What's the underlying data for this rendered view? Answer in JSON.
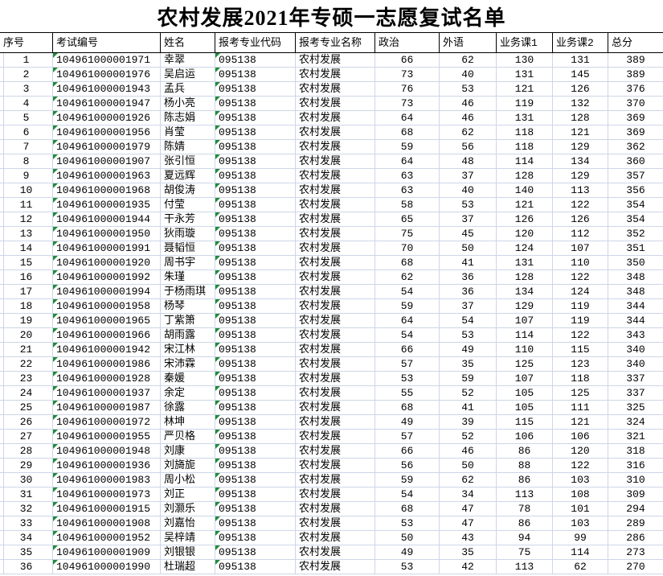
{
  "title": "农村发展2021年专硕一志愿复试名单",
  "colors": {
    "background": "#ffffff",
    "text": "#000000",
    "gridline": "#cdd6e7",
    "header_border": "#000000",
    "stored_as_text_triangle": "#1f8b3b"
  },
  "table": {
    "columns": [
      {
        "key": "no",
        "label": "序号",
        "width": 66,
        "align": "center",
        "triangle": false
      },
      {
        "key": "exam_no",
        "label": "考试编号",
        "width": 134,
        "align": "left",
        "triangle": true
      },
      {
        "key": "name",
        "label": "姓名",
        "width": 68,
        "align": "left",
        "triangle": false
      },
      {
        "key": "major_code",
        "label": "报考专业代码",
        "width": 100,
        "align": "left",
        "triangle": true
      },
      {
        "key": "major_name",
        "label": "报考专业名称",
        "width": 99,
        "align": "left",
        "triangle": false
      },
      {
        "key": "politics",
        "label": "政治",
        "width": 80,
        "align": "center",
        "triangle": false
      },
      {
        "key": "foreign",
        "label": "外语",
        "width": 71,
        "align": "center",
        "triangle": false
      },
      {
        "key": "course1",
        "label": "业务课1",
        "width": 70,
        "align": "center",
        "triangle": false
      },
      {
        "key": "course2",
        "label": "业务课2",
        "width": 69,
        "align": "center",
        "triangle": false
      },
      {
        "key": "total",
        "label": "总分",
        "width": 68,
        "align": "center",
        "triangle": false
      }
    ],
    "rows": [
      {
        "no": 1,
        "exam_no": "104961000001971",
        "name": "幸翠",
        "major_code": "095138",
        "major_name": "农村发展",
        "politics": 66,
        "foreign": 62,
        "course1": 130,
        "course2": 131,
        "total": 389
      },
      {
        "no": 2,
        "exam_no": "104961000001976",
        "name": "吴启运",
        "major_code": "095138",
        "major_name": "农村发展",
        "politics": 73,
        "foreign": 40,
        "course1": 131,
        "course2": 145,
        "total": 389
      },
      {
        "no": 3,
        "exam_no": "104961000001943",
        "name": "孟兵",
        "major_code": "095138",
        "major_name": "农村发展",
        "politics": 76,
        "foreign": 53,
        "course1": 121,
        "course2": 126,
        "total": 376
      },
      {
        "no": 4,
        "exam_no": "104961000001947",
        "name": "杨小亮",
        "major_code": "095138",
        "major_name": "农村发展",
        "politics": 73,
        "foreign": 46,
        "course1": 119,
        "course2": 132,
        "total": 370
      },
      {
        "no": 5,
        "exam_no": "104961000001926",
        "name": "陈志娟",
        "major_code": "095138",
        "major_name": "农村发展",
        "politics": 64,
        "foreign": 46,
        "course1": 131,
        "course2": 128,
        "total": 369
      },
      {
        "no": 6,
        "exam_no": "104961000001956",
        "name": "肖莹",
        "major_code": "095138",
        "major_name": "农村发展",
        "politics": 68,
        "foreign": 62,
        "course1": 118,
        "course2": 121,
        "total": 369
      },
      {
        "no": 7,
        "exam_no": "104961000001979",
        "name": "陈婧",
        "major_code": "095138",
        "major_name": "农村发展",
        "politics": 59,
        "foreign": 56,
        "course1": 118,
        "course2": 129,
        "total": 362
      },
      {
        "no": 8,
        "exam_no": "104961000001907",
        "name": "张引恒",
        "major_code": "095138",
        "major_name": "农村发展",
        "politics": 64,
        "foreign": 48,
        "course1": 114,
        "course2": 134,
        "total": 360
      },
      {
        "no": 9,
        "exam_no": "104961000001963",
        "name": "夏远辉",
        "major_code": "095138",
        "major_name": "农村发展",
        "politics": 63,
        "foreign": 37,
        "course1": 128,
        "course2": 129,
        "total": 357
      },
      {
        "no": 10,
        "exam_no": "104961000001968",
        "name": "胡俊涛",
        "major_code": "095138",
        "major_name": "农村发展",
        "politics": 63,
        "foreign": 40,
        "course1": 140,
        "course2": 113,
        "total": 356
      },
      {
        "no": 11,
        "exam_no": "104961000001935",
        "name": "付莹",
        "major_code": "095138",
        "major_name": "农村发展",
        "politics": 58,
        "foreign": 53,
        "course1": 121,
        "course2": 122,
        "total": 354
      },
      {
        "no": 12,
        "exam_no": "104961000001944",
        "name": "干永芳",
        "major_code": "095138",
        "major_name": "农村发展",
        "politics": 65,
        "foreign": 37,
        "course1": 126,
        "course2": 126,
        "total": 354
      },
      {
        "no": 13,
        "exam_no": "104961000001950",
        "name": "狄雨璇",
        "major_code": "095138",
        "major_name": "农村发展",
        "politics": 75,
        "foreign": 45,
        "course1": 120,
        "course2": 112,
        "total": 352
      },
      {
        "no": 14,
        "exam_no": "104961000001991",
        "name": "聂韬恒",
        "major_code": "095138",
        "major_name": "农村发展",
        "politics": 70,
        "foreign": 50,
        "course1": 124,
        "course2": 107,
        "total": 351
      },
      {
        "no": 15,
        "exam_no": "104961000001920",
        "name": "周书宇",
        "major_code": "095138",
        "major_name": "农村发展",
        "politics": 68,
        "foreign": 41,
        "course1": 131,
        "course2": 110,
        "total": 350
      },
      {
        "no": 16,
        "exam_no": "104961000001992",
        "name": "朱瑾",
        "major_code": "095138",
        "major_name": "农村发展",
        "politics": 62,
        "foreign": 36,
        "course1": 128,
        "course2": 122,
        "total": 348
      },
      {
        "no": 17,
        "exam_no": "104961000001994",
        "name": "于杨雨琪",
        "major_code": "095138",
        "major_name": "农村发展",
        "politics": 54,
        "foreign": 36,
        "course1": 134,
        "course2": 124,
        "total": 348
      },
      {
        "no": 18,
        "exam_no": "104961000001958",
        "name": "杨琴",
        "major_code": "095138",
        "major_name": "农村发展",
        "politics": 59,
        "foreign": 37,
        "course1": 129,
        "course2": 119,
        "total": 344
      },
      {
        "no": 19,
        "exam_no": "104961000001965",
        "name": "丁紫箫",
        "major_code": "095138",
        "major_name": "农村发展",
        "politics": 64,
        "foreign": 54,
        "course1": 107,
        "course2": 119,
        "total": 344
      },
      {
        "no": 20,
        "exam_no": "104961000001966",
        "name": "胡雨露",
        "major_code": "095138",
        "major_name": "农村发展",
        "politics": 54,
        "foreign": 53,
        "course1": 114,
        "course2": 122,
        "total": 343
      },
      {
        "no": 21,
        "exam_no": "104961000001942",
        "name": "宋江林",
        "major_code": "095138",
        "major_name": "农村发展",
        "politics": 66,
        "foreign": 49,
        "course1": 110,
        "course2": 115,
        "total": 340
      },
      {
        "no": 22,
        "exam_no": "104961000001986",
        "name": "宋沛霖",
        "major_code": "095138",
        "major_name": "农村发展",
        "politics": 57,
        "foreign": 35,
        "course1": 125,
        "course2": 123,
        "total": 340
      },
      {
        "no": 23,
        "exam_no": "104961000001928",
        "name": "秦媛",
        "major_code": "095138",
        "major_name": "农村发展",
        "politics": 53,
        "foreign": 59,
        "course1": 107,
        "course2": 118,
        "total": 337
      },
      {
        "no": 24,
        "exam_no": "104961000001937",
        "name": "余定",
        "major_code": "095138",
        "major_name": "农村发展",
        "politics": 55,
        "foreign": 52,
        "course1": 105,
        "course2": 125,
        "total": 337
      },
      {
        "no": 25,
        "exam_no": "104961000001987",
        "name": "徐露",
        "major_code": "095138",
        "major_name": "农村发展",
        "politics": 68,
        "foreign": 41,
        "course1": 105,
        "course2": 111,
        "total": 325
      },
      {
        "no": 26,
        "exam_no": "104961000001972",
        "name": "林坤",
        "major_code": "095138",
        "major_name": "农村发展",
        "politics": 49,
        "foreign": 39,
        "course1": 115,
        "course2": 121,
        "total": 324
      },
      {
        "no": 27,
        "exam_no": "104961000001955",
        "name": "严贝格",
        "major_code": "095138",
        "major_name": "农村发展",
        "politics": 57,
        "foreign": 52,
        "course1": 106,
        "course2": 106,
        "total": 321
      },
      {
        "no": 28,
        "exam_no": "104961000001948",
        "name": "刘康",
        "major_code": "095138",
        "major_name": "农村发展",
        "politics": 66,
        "foreign": 46,
        "course1": 86,
        "course2": 120,
        "total": 318
      },
      {
        "no": 29,
        "exam_no": "104961000001936",
        "name": "刘旖旎",
        "major_code": "095138",
        "major_name": "农村发展",
        "politics": 56,
        "foreign": 50,
        "course1": 88,
        "course2": 122,
        "total": 316
      },
      {
        "no": 30,
        "exam_no": "104961000001983",
        "name": "周小松",
        "major_code": "095138",
        "major_name": "农村发展",
        "politics": 59,
        "foreign": 62,
        "course1": 86,
        "course2": 103,
        "total": 310
      },
      {
        "no": 31,
        "exam_no": "104961000001973",
        "name": "刘正",
        "major_code": "095138",
        "major_name": "农村发展",
        "politics": 54,
        "foreign": 34,
        "course1": 113,
        "course2": 108,
        "total": 309
      },
      {
        "no": 32,
        "exam_no": "104961000001915",
        "name": "刘灏乐",
        "major_code": "095138",
        "major_name": "农村发展",
        "politics": 68,
        "foreign": 47,
        "course1": 78,
        "course2": 101,
        "total": 294
      },
      {
        "no": 33,
        "exam_no": "104961000001908",
        "name": "刘嘉怡",
        "major_code": "095138",
        "major_name": "农村发展",
        "politics": 53,
        "foreign": 47,
        "course1": 86,
        "course2": 103,
        "total": 289
      },
      {
        "no": 34,
        "exam_no": "104961000001952",
        "name": "吴梓靖",
        "major_code": "095138",
        "major_name": "农村发展",
        "politics": 50,
        "foreign": 43,
        "course1": 94,
        "course2": 99,
        "total": 286
      },
      {
        "no": 35,
        "exam_no": "104961000001909",
        "name": "刘银银",
        "major_code": "095138",
        "major_name": "农村发展",
        "politics": 49,
        "foreign": 35,
        "course1": 75,
        "course2": 114,
        "total": 273
      },
      {
        "no": 36,
        "exam_no": "104961000001990",
        "name": "杜瑞超",
        "major_code": "095138",
        "major_name": "农村发展",
        "politics": 53,
        "foreign": 42,
        "course1": 113,
        "course2": 62,
        "total": 270
      }
    ]
  }
}
